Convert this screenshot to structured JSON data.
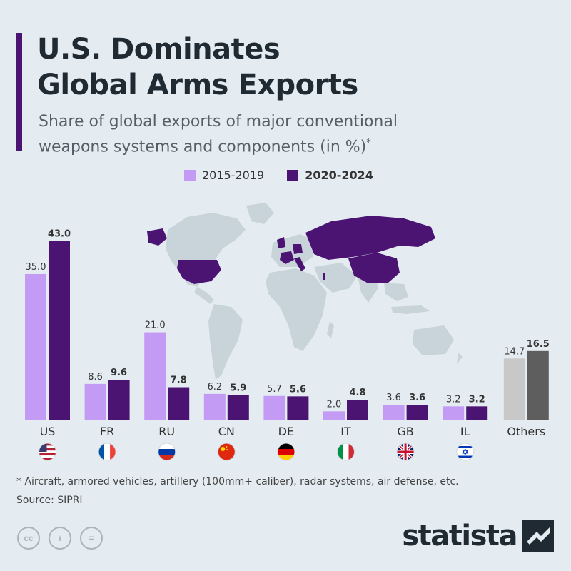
{
  "title_lines": [
    "U.S. Dominates",
    "Global Arms Exports"
  ],
  "subtitle_lines": [
    "Share of global exports of major conventional",
    "weapons systems and components (in %)"
  ],
  "subtitle_mark": "*",
  "footnote": "* Aircraft, armored vehicles, artillery (100mm+ caliber), radar systems, air defense, etc.",
  "source": "Source: SIPRI",
  "brand": "statista",
  "license_icons": [
    "cc-icon",
    "by-icon",
    "nd-icon"
  ],
  "license_labels": [
    "cc",
    "i",
    "="
  ],
  "colors": {
    "bg": "#e4ecf1",
    "accent": "#4b1473",
    "light_purple": "#c39bf4",
    "dark_purple": "#4b1473",
    "others_light": "#c8c8c8",
    "others_dark": "#5e5e5e",
    "map_land": "#c9d3da"
  },
  "chart_data": {
    "type": "bar",
    "categories": [
      "US",
      "FR",
      "RU",
      "CN",
      "DE",
      "IT",
      "GB",
      "IL",
      "Others"
    ],
    "series": [
      {
        "name": "2015-2019",
        "values": [
          35.0,
          8.6,
          21.0,
          6.2,
          5.7,
          2.0,
          3.6,
          3.2,
          14.7
        ]
      },
      {
        "name": "2020-2024",
        "values": [
          43.0,
          9.6,
          7.8,
          5.9,
          5.6,
          4.8,
          3.6,
          3.2,
          16.5
        ]
      }
    ],
    "value_labels": [
      [
        "35.0",
        "8.6",
        "21.0",
        "6.2",
        "5.7",
        "2.0",
        "3.6",
        "3.2",
        "14.7"
      ],
      [
        "43.0",
        "9.6",
        "7.8",
        "5.9",
        "5.6",
        "4.8",
        "3.6",
        "3.2",
        "16.5"
      ]
    ],
    "flags": [
      "us-flag-icon",
      "fr-flag-icon",
      "ru-flag-icon",
      "cn-flag-icon",
      "de-flag-icon",
      "it-flag-icon",
      "gb-flag-icon",
      "il-flag-icon",
      null
    ],
    "legend_position": "top-center",
    "grid": false,
    "background_map": "world map with US, FR, RU, CN, DE, IT, GB, IL highlighted"
  }
}
